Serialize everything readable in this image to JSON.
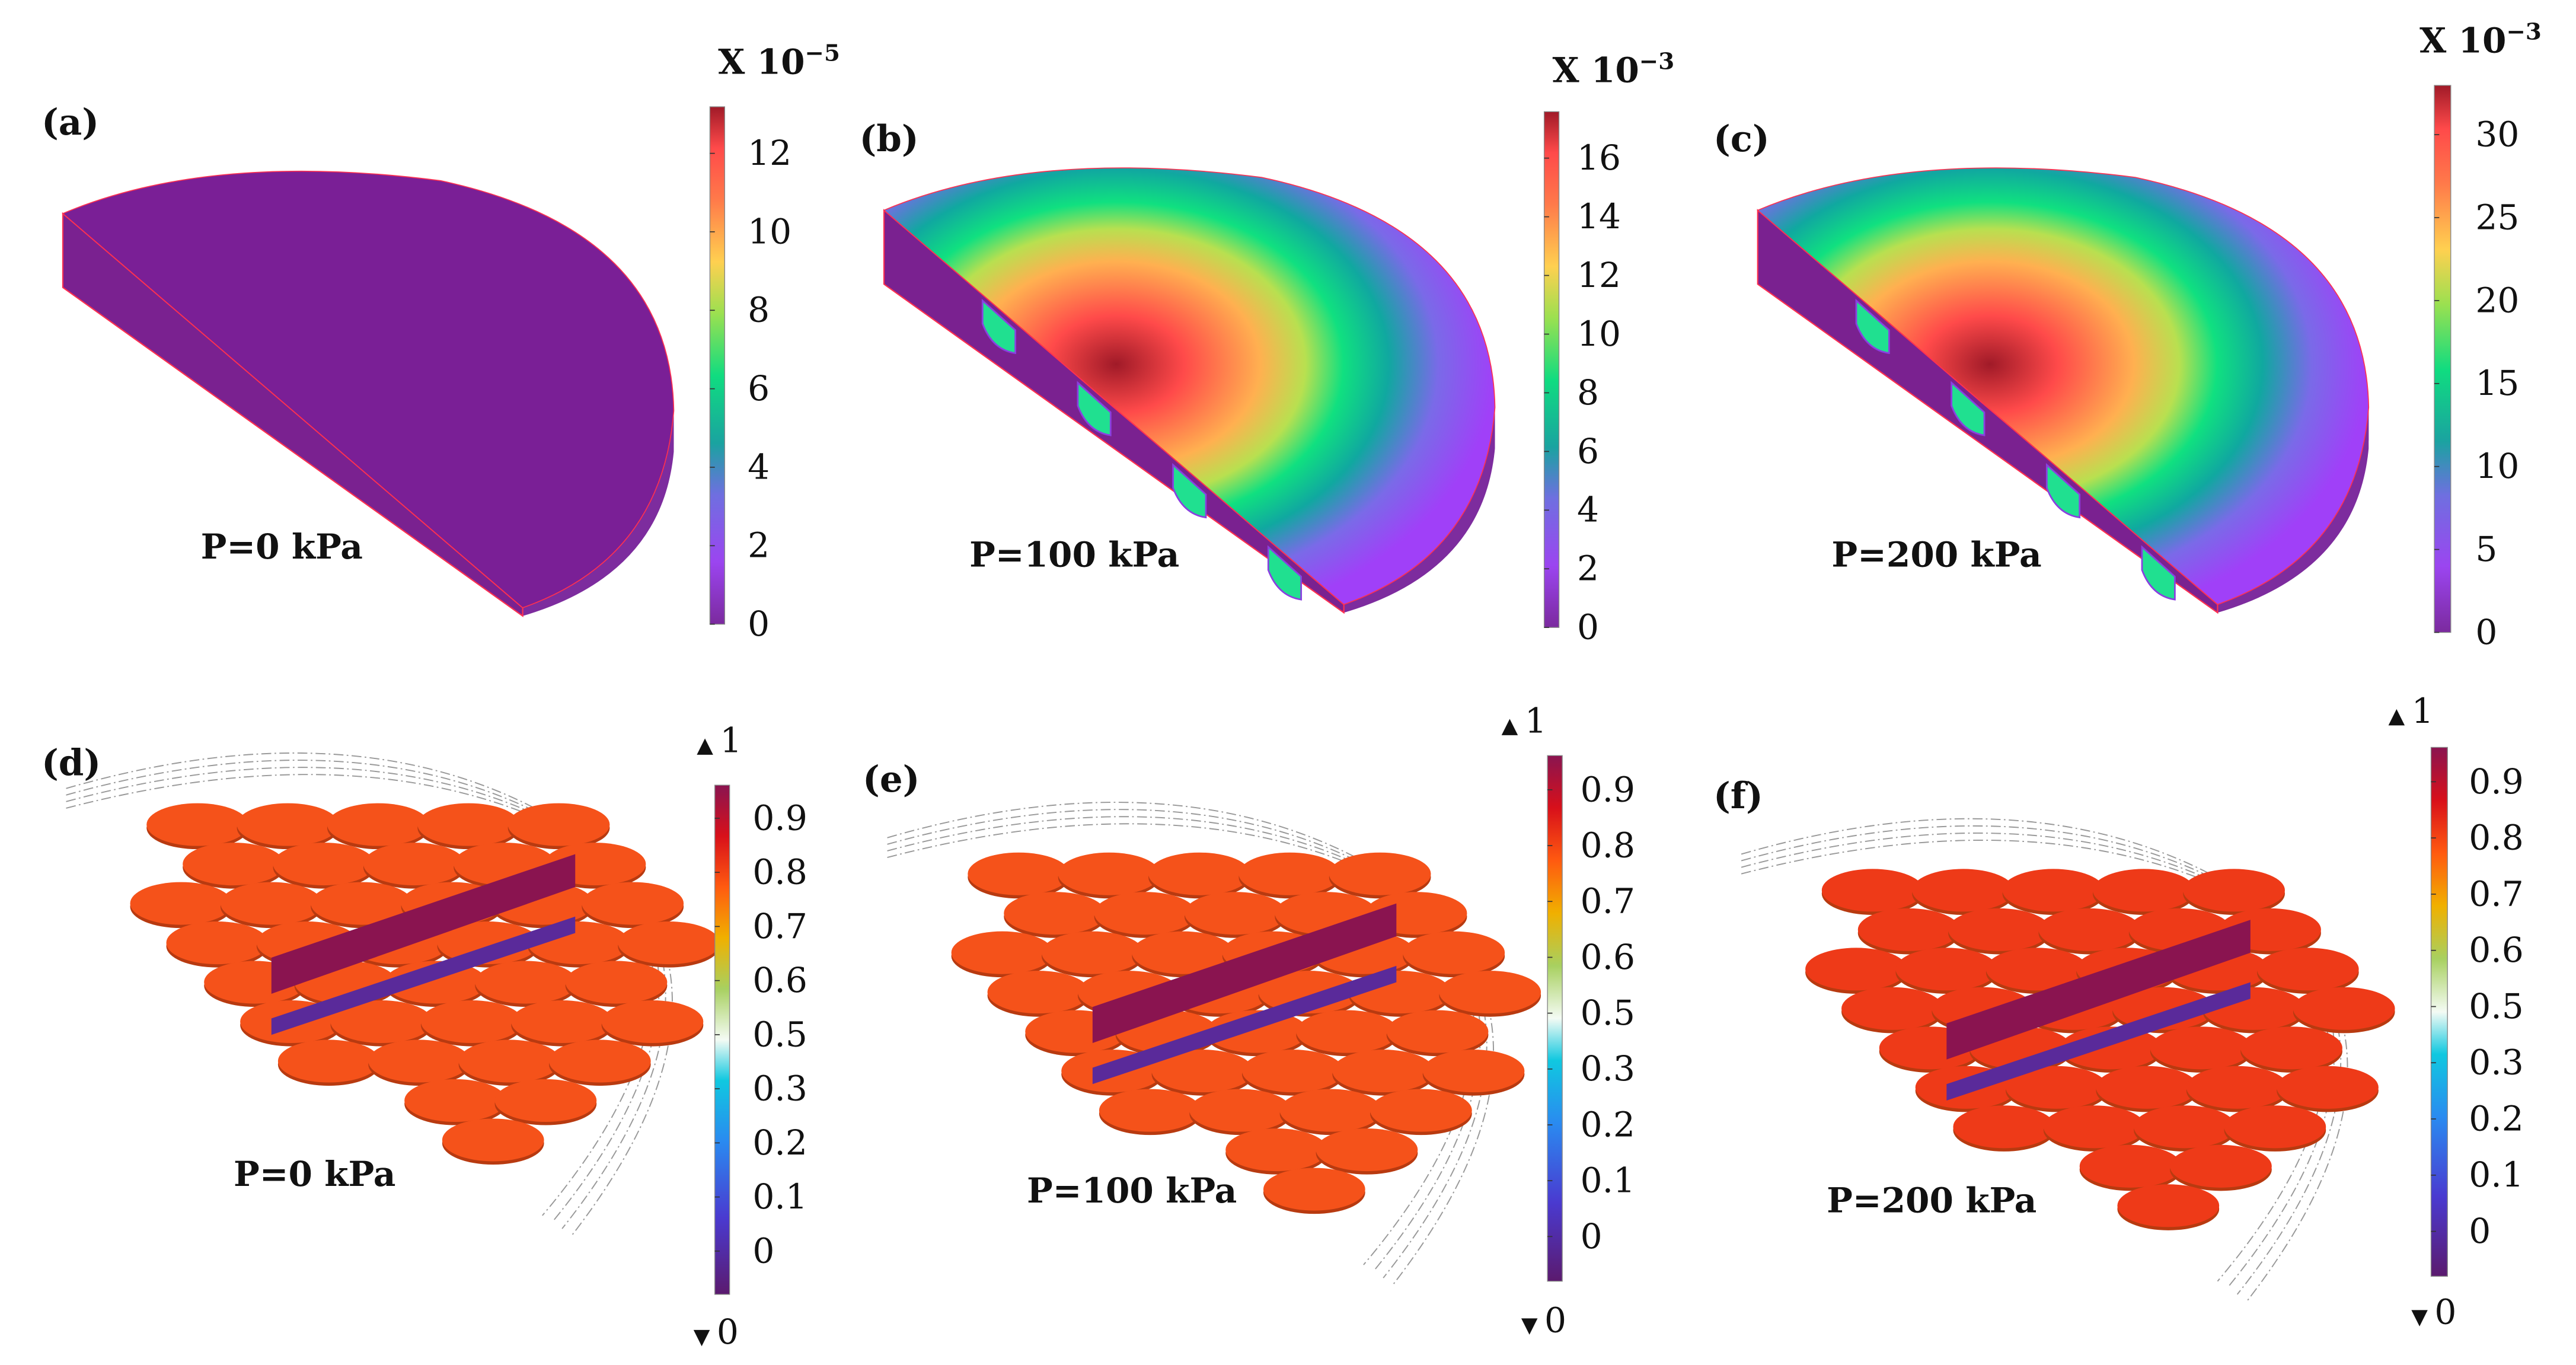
{
  "panels": [
    {
      "id": "a",
      "label": "(a)",
      "pressure": "P=0 kPa",
      "kind": "displacement",
      "state": "uniform-zero",
      "colorbar": {
        "base": "X 10",
        "exponent": "−5",
        "ticks": [
          "0",
          "2",
          "4",
          "6",
          "8",
          "10",
          "12"
        ]
      }
    },
    {
      "id": "b",
      "label": "(b)",
      "pressure": "P=100 kPa",
      "kind": "displacement",
      "state": "deformed",
      "colorbar": {
        "base": "X 10",
        "exponent": "−3",
        "ticks": [
          "0",
          "2",
          "4",
          "6",
          "8",
          "10",
          "12",
          "14",
          "16"
        ]
      }
    },
    {
      "id": "c",
      "label": "(c)",
      "pressure": "P=200 kPa",
      "kind": "displacement",
      "state": "deformed",
      "colorbar": {
        "base": "X 10",
        "exponent": "−3",
        "ticks": [
          "0",
          "5",
          "10",
          "15",
          "20",
          "25",
          "30"
        ]
      }
    },
    {
      "id": "d",
      "label": "(d)",
      "pressure": "P=0 kPa",
      "kind": "field",
      "colorbar": {
        "max_marker": "1",
        "min_marker": "0",
        "ticks": [
          "0",
          "0.1",
          "0.2",
          "0.3",
          "0.5",
          "0.6",
          "0.7",
          "0.8",
          "0.9"
        ]
      }
    },
    {
      "id": "e",
      "label": "(e)",
      "pressure": "P=100 kPa",
      "kind": "field",
      "colorbar": {
        "max_marker": "1",
        "min_marker": "0",
        "ticks": [
          "0",
          "0.1",
          "0.2",
          "0.3",
          "0.5",
          "0.6",
          "0.7",
          "0.8",
          "0.9"
        ]
      }
    },
    {
      "id": "f",
      "label": "(f)",
      "pressure": "P=200 kPa",
      "kind": "field",
      "colorbar": {
        "max_marker": "1",
        "min_marker": "0",
        "ticks": [
          "0",
          "0.1",
          "0.2",
          "0.3",
          "0.5",
          "0.6",
          "0.7",
          "0.8",
          "0.9"
        ]
      }
    }
  ],
  "colors": {
    "purple": "#7a1f96",
    "disc": "#f5521a",
    "strip": "#8a1450",
    "strip_low": "#5a2a9a"
  }
}
